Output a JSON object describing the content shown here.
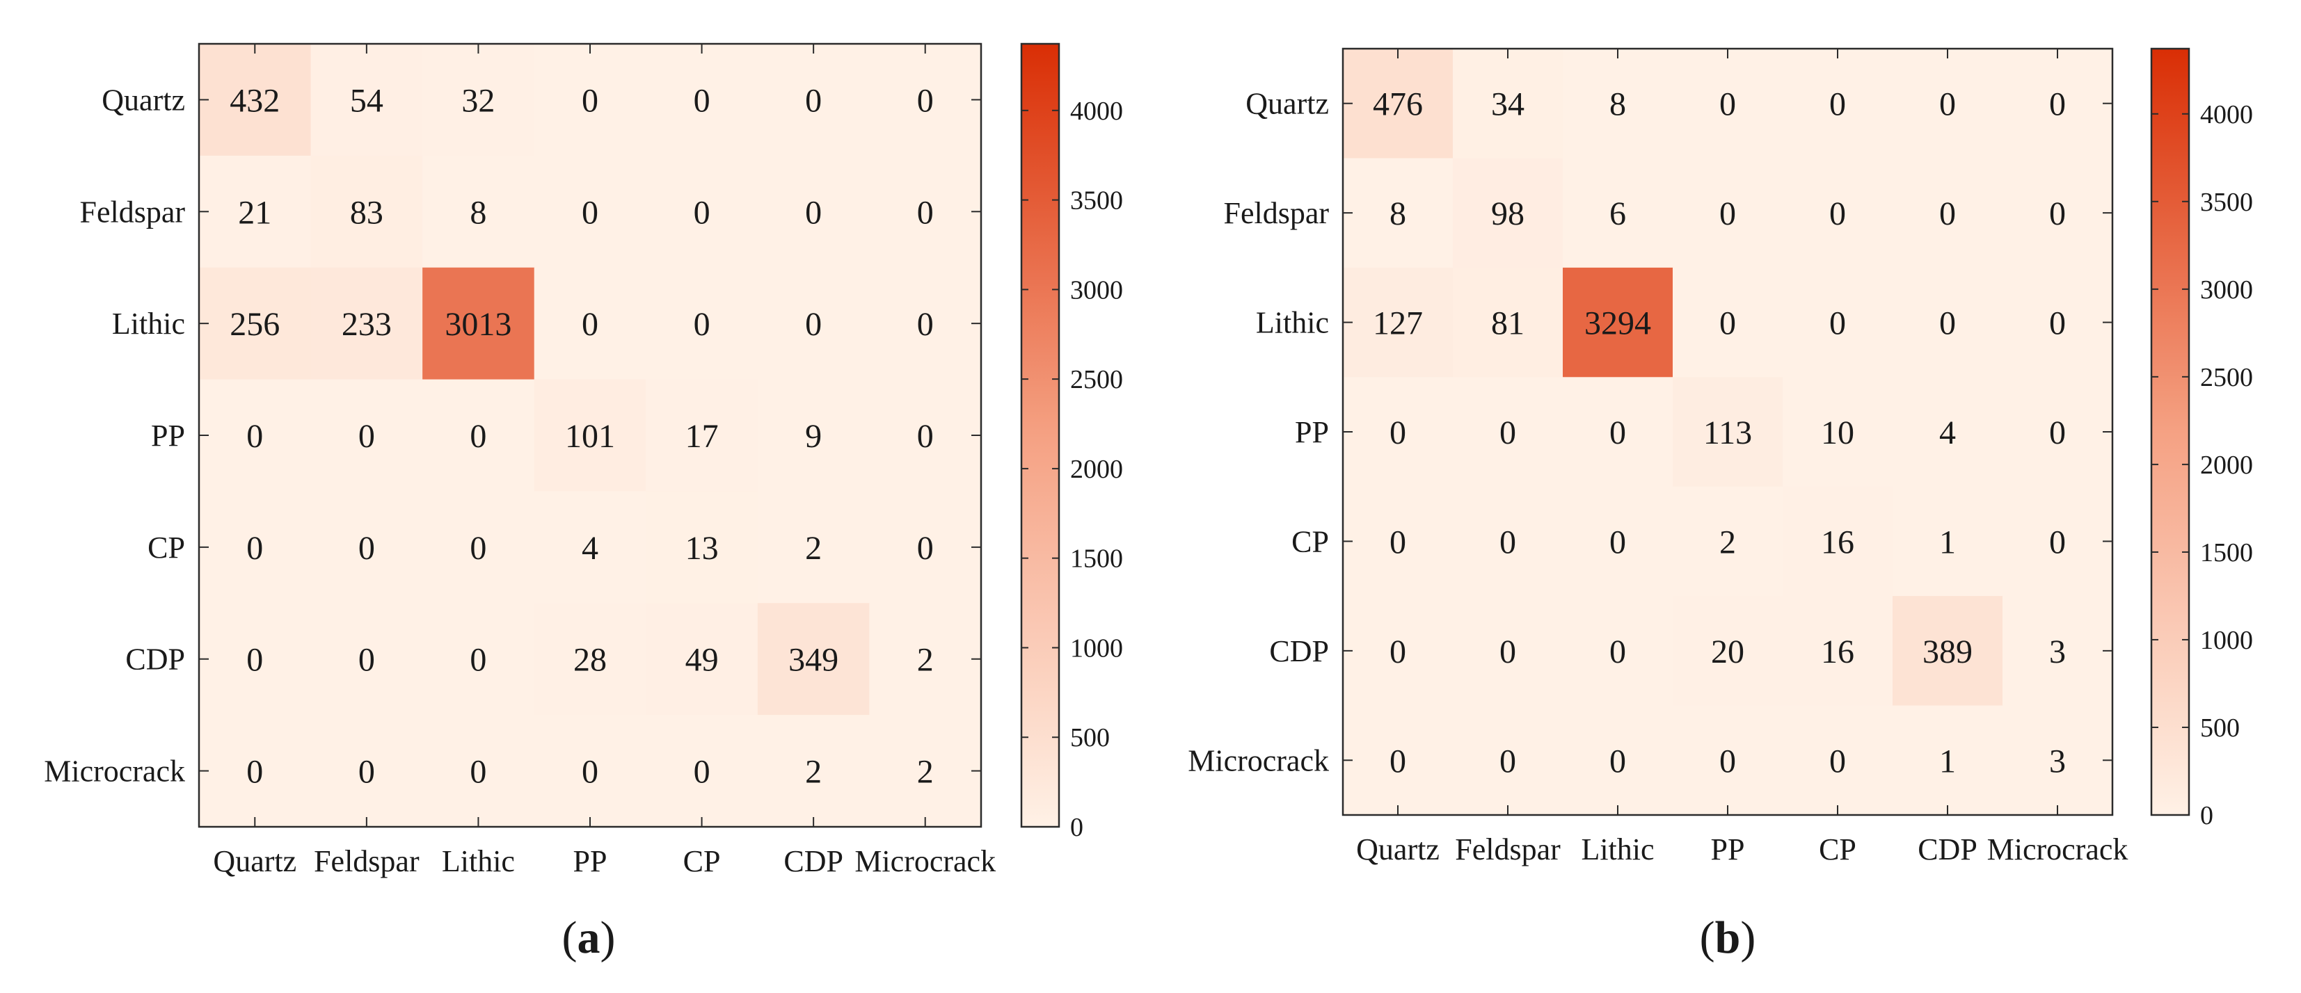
{
  "chart_data": [
    {
      "type": "heatmap",
      "caption": "a",
      "row_labels": [
        "Quartz",
        "Feldspar",
        "Lithic",
        "PP",
        "CP",
        "CDP",
        "Microcrack"
      ],
      "col_labels": [
        "Quartz",
        "Feldspar",
        "Lithic",
        "PP",
        "CP",
        "CDP",
        "Microcrack"
      ],
      "values": [
        [
          432,
          54,
          32,
          0,
          0,
          0,
          0
        ],
        [
          21,
          83,
          8,
          0,
          0,
          0,
          0
        ],
        [
          256,
          233,
          3013,
          0,
          0,
          0,
          0
        ],
        [
          0,
          0,
          0,
          101,
          17,
          9,
          0
        ],
        [
          0,
          0,
          0,
          4,
          13,
          2,
          0
        ],
        [
          0,
          0,
          0,
          28,
          49,
          349,
          2
        ],
        [
          0,
          0,
          0,
          0,
          0,
          2,
          2
        ]
      ],
      "colorbar": {
        "min": 0,
        "max": 4372,
        "ticks": [
          0,
          500,
          1000,
          1500,
          2000,
          2500,
          3000,
          3500,
          4000
        ]
      }
    },
    {
      "type": "heatmap",
      "caption": "b",
      "row_labels": [
        "Quartz",
        "Feldspar",
        "Lithic",
        "PP",
        "CP",
        "CDP",
        "Microcrack"
      ],
      "col_labels": [
        "Quartz",
        "Feldspar",
        "Lithic",
        "PP",
        "CP",
        "CDP",
        "Microcrack"
      ],
      "values": [
        [
          476,
          34,
          8,
          0,
          0,
          0,
          0
        ],
        [
          8,
          98,
          6,
          0,
          0,
          0,
          0
        ],
        [
          127,
          81,
          3294,
          0,
          0,
          0,
          0
        ],
        [
          0,
          0,
          0,
          113,
          10,
          4,
          0
        ],
        [
          0,
          0,
          0,
          2,
          16,
          1,
          0
        ],
        [
          0,
          0,
          0,
          20,
          16,
          389,
          3
        ],
        [
          0,
          0,
          0,
          0,
          0,
          1,
          3
        ]
      ],
      "colorbar": {
        "min": 0,
        "max": 4372,
        "ticks": [
          0,
          500,
          1000,
          1500,
          2000,
          2500,
          3000,
          3500,
          4000
        ]
      }
    }
  ],
  "colors": {
    "low": "#fff1e6",
    "mid": "#f5a183",
    "high": "#d92e05",
    "axis": "#2b2b2b"
  }
}
